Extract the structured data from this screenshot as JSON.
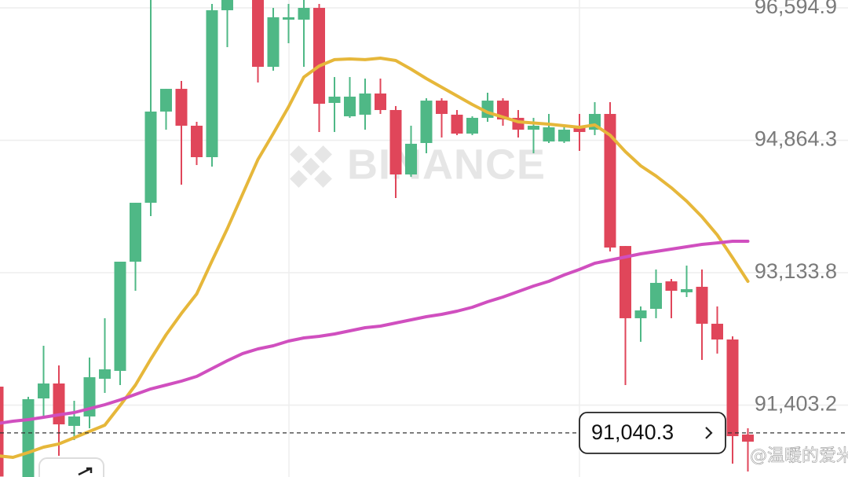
{
  "chart_data": {
    "type": "candlestick",
    "up_color": "#4fb886",
    "down_color": "#e0465a",
    "ylim": [
      90464,
      96698
    ],
    "yticks": [
      {
        "value": 96594.9,
        "label": "96,594.9"
      },
      {
        "value": 94864.3,
        "label": "94,864.3"
      },
      {
        "value": 93133.8,
        "label": "93,133.8"
      },
      {
        "value": 91403.2,
        "label": "91,403.2"
      }
    ],
    "grid": true,
    "open": [
      91645,
      null,
      90464,
      91491,
      91686,
      91132,
      91255,
      91748,
      91851,
      93278,
      94048,
      95240,
      95537,
      95055,
      94644,
      96564,
      null,
      96720,
      95825,
      96441,
      96441,
      96595,
      95353,
      95178,
      95199,
      95476,
      95260,
      94418,
      94829,
      95383,
      95199,
      94952,
      95158,
      95383,
      95158,
      95003,
      94849,
      94849,
      95034,
      95003,
      95209,
      93483,
      92539,
      92662,
      93021,
      92878,
      92950,
      92467,
      92261,
      91019
    ],
    "high": [
      91645,
      null,
      91512,
      92179,
      91922,
      91460,
      92025,
      92539,
      93278,
      94048,
      96700,
      95537,
      95640,
      95106,
      96647,
      96750,
      null,
      96750,
      96595,
      96647,
      96698,
      96647,
      95691,
      95691,
      95671,
      95671,
      95312,
      95055,
      95414,
      95414,
      95260,
      95178,
      95486,
      95414,
      95260,
      95158,
      95209,
      95055,
      95209,
      95363,
      95363,
      93483,
      92693,
      93176,
      93052,
      93227,
      93176,
      92693,
      92302,
      91101
    ],
    "low": [
      90464,
      null,
      90464,
      91255,
      90741,
      90947,
      91101,
      91563,
      91666,
      92898,
      93874,
      95003,
      94284,
      94541,
      94521,
      96082,
      null,
      95620,
      95774,
      96133,
      95825,
      94973,
      94973,
      95158,
      95003,
      95209,
      94110,
      94387,
      94695,
      94901,
      94932,
      94932,
      95106,
      95055,
      94901,
      94695,
      94829,
      94829,
      94726,
      94932,
      93412,
      91666,
      92231,
      92539,
      92539,
      92816,
      91994,
      92077,
      90639,
      90536
    ],
    "close": [
      90470,
      null,
      91481,
      91686,
      91152,
      91255,
      91768,
      91871,
      93278,
      94048,
      95240,
      95537,
      95055,
      94644,
      96564,
      96720,
      null,
      95825,
      96472,
      96472,
      96595,
      95342,
      95435,
      95435,
      95476,
      95260,
      94418,
      94819,
      95383,
      95209,
      94952,
      95158,
      95383,
      95137,
      95003,
      95055,
      95034,
      95003,
      94973,
      95209,
      93463,
      92539,
      92641,
      93001,
      92898,
      92919,
      92467,
      92261,
      90998,
      90926
    ],
    "lines": [
      {
        "color": "#e6b73a",
        "values": [
          90741,
          90721,
          90783,
          90854,
          90896,
          90978,
          91060,
          91142,
          91399,
          91666,
          92005,
          92323,
          92601,
          92857,
          93288,
          93709,
          94161,
          94613,
          94952,
          95301,
          95691,
          95835,
          95918,
          95928,
          95918,
          95938,
          95907,
          95794,
          95671,
          95558,
          95445,
          95332,
          95229,
          95168,
          95106,
          95091,
          95075,
          95055,
          95034,
          95065,
          94932,
          94716,
          94531,
          94398,
          94244,
          94069,
          93864,
          93627,
          93329,
          93021
        ]
      },
      {
        "color": "#d04fbf",
        "values": [
          91162,
          91193,
          91214,
          91245,
          91276,
          91306,
          91358,
          91409,
          91471,
          91543,
          91615,
          91666,
          91717,
          91779,
          91881,
          91984,
          92077,
          92138,
          92179,
          92241,
          92282,
          92302,
          92333,
          92374,
          92415,
          92436,
          92477,
          92518,
          92559,
          92590,
          92631,
          92682,
          92754,
          92816,
          92888,
          92960,
          93021,
          93104,
          93176,
          93258,
          93299,
          93340,
          93381,
          93412,
          93442,
          93473,
          93504,
          93524,
          93545,
          93545
        ]
      }
    ],
    "current_price": {
      "value": 91040.3,
      "label": "91,040.3"
    },
    "watermark": "BINANCE"
  },
  "footer_watermark": "@温暖的爱米"
}
